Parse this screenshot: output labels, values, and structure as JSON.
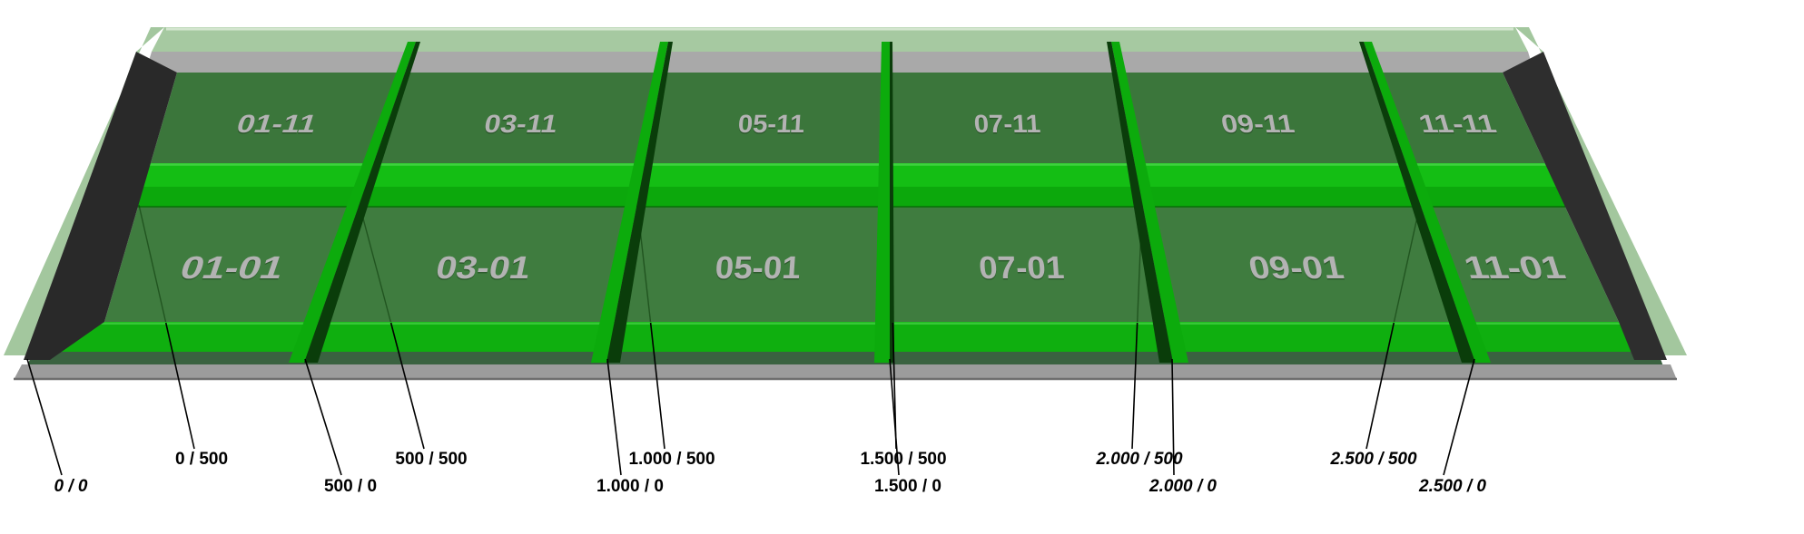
{
  "view": {
    "description": "3D bench layout view",
    "rows": 2,
    "cols": 6
  },
  "cells": {
    "back": [
      {
        "label": "01-11"
      },
      {
        "label": "03-11"
      },
      {
        "label": "05-11"
      },
      {
        "label": "07-11"
      },
      {
        "label": "09-11"
      },
      {
        "label": "11-11"
      }
    ],
    "front": [
      {
        "label": "01-01"
      },
      {
        "label": "03-01"
      },
      {
        "label": "05-01"
      },
      {
        "label": "07-01"
      },
      {
        "label": "09-01"
      },
      {
        "label": "11-01"
      }
    ]
  },
  "markers": {
    "mid": [
      {
        "label": "0 / 500",
        "italic": false
      },
      {
        "label": "500 / 500",
        "italic": false
      },
      {
        "label": "1.000 / 500",
        "italic": false
      },
      {
        "label": "1.500 / 500",
        "italic": false
      },
      {
        "label": "2.000 / 500",
        "italic": true
      },
      {
        "label": "2.500 / 500",
        "italic": true
      }
    ],
    "front": [
      {
        "label": "0 / 0",
        "italic": true
      },
      {
        "label": "500 / 0",
        "italic": false
      },
      {
        "label": "1.000 / 0",
        "italic": false
      },
      {
        "label": "1.500 / 0",
        "italic": false
      },
      {
        "label": "2.000 / 0",
        "italic": true
      },
      {
        "label": "2.500 / 0",
        "italic": true
      }
    ]
  },
  "colors": {
    "background": "#ffffff",
    "pale_top": "#A6C9A1",
    "pale_highlight": "#D4E6D0",
    "gray_band": "#A9A9A9",
    "floor_back": "#3B763B",
    "floor_front": "#3F7C3F",
    "mid_wall_top": "#14BE14",
    "mid_wall_highlight": "#3ED23E",
    "mid_wall_face": "#0CA80C",
    "mid_wall_base": "#077007",
    "divider_bright": "#0CAB0C",
    "divider_dark": "#0A3D0A",
    "front_wall_top": "#0FAF0F",
    "front_wall_highlight": "#36C836",
    "front_wall_face": "#3A6240",
    "base_strip": "#9C9C9C",
    "base_strip_edge": "#6E6E6E",
    "side_wedge": "#292929",
    "side_rim": "#A3C79E",
    "cell_text": "#B3B3B3",
    "leader_line": "#000000"
  }
}
